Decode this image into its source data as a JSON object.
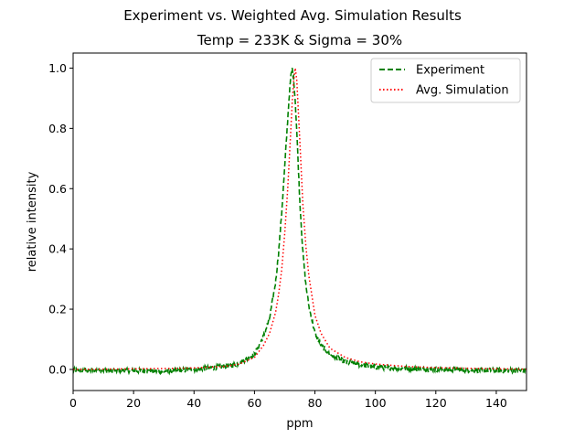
{
  "chart_data": {
    "type": "line",
    "suptitle": "Experiment vs. Weighted Avg. Simulation Results",
    "title": "Temp = 233K & Sigma = 30%",
    "xlabel": "ppm",
    "ylabel": "relative intensity",
    "xlim": [
      0,
      150
    ],
    "ylim": [
      -0.07,
      1.05
    ],
    "xticks": [
      0,
      20,
      40,
      60,
      80,
      100,
      120,
      140
    ],
    "yticks": [
      0.0,
      0.2,
      0.4,
      0.6,
      0.8,
      1.0
    ],
    "grid": false,
    "legend_position": "top-right",
    "series": [
      {
        "name": "Experiment",
        "color": "#008000",
        "style": "dashed",
        "peak_center": 72.5,
        "peak_halfwidth": 3.4,
        "noise_amplitude": 0.008,
        "x": [
          0,
          10,
          20,
          30,
          40,
          50,
          55,
          60,
          63,
          65,
          67,
          68,
          69,
          70,
          71,
          71.5,
          72,
          72.5,
          73,
          73.5,
          74,
          75,
          76,
          77,
          78,
          80,
          82,
          85,
          90,
          95,
          100,
          110,
          120,
          130,
          140,
          150
        ],
        "y": [
          -0.003,
          -0.003,
          -0.004,
          -0.006,
          0.0,
          0.01,
          0.02,
          0.05,
          0.11,
          0.17,
          0.29,
          0.39,
          0.52,
          0.67,
          0.83,
          0.91,
          0.97,
          1.0,
          0.96,
          0.89,
          0.79,
          0.56,
          0.39,
          0.28,
          0.21,
          0.12,
          0.08,
          0.05,
          0.025,
          0.015,
          0.008,
          0.003,
          0.0,
          -0.002,
          -0.003,
          -0.004
        ]
      },
      {
        "name": "Avg. Simulation",
        "color": "#ff0000",
        "style": "dotted",
        "x": [
          0,
          10,
          20,
          30,
          40,
          50,
          55,
          60,
          63,
          65,
          67,
          68,
          69,
          70,
          71,
          72,
          72.5,
          73,
          73.5,
          74,
          75,
          76,
          77,
          78,
          80,
          82,
          85,
          90,
          95,
          100,
          110,
          120,
          130,
          140,
          150
        ],
        "y": [
          0.0,
          0.001,
          0.002,
          0.003,
          0.005,
          0.01,
          0.018,
          0.04,
          0.08,
          0.12,
          0.19,
          0.25,
          0.33,
          0.45,
          0.6,
          0.79,
          0.89,
          0.96,
          1.0,
          0.96,
          0.76,
          0.55,
          0.41,
          0.31,
          0.18,
          0.12,
          0.07,
          0.04,
          0.025,
          0.018,
          0.01,
          0.006,
          0.004,
          0.002,
          0.001
        ]
      }
    ]
  }
}
